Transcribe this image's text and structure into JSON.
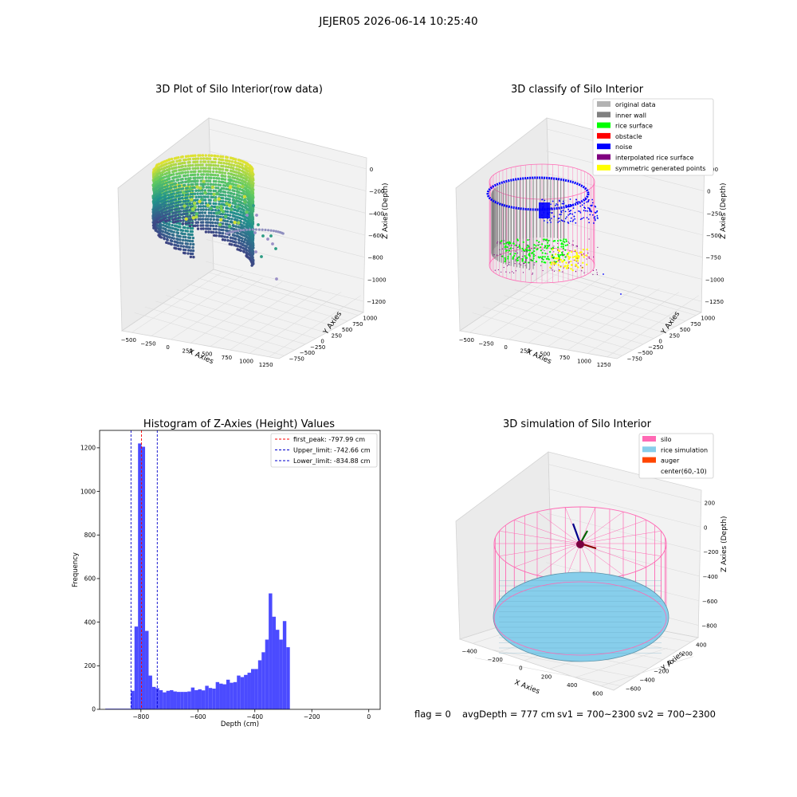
{
  "suptitle": "JEJER05 2026-06-14 10:25:40",
  "footer": {
    "flag": "flag = 0",
    "avg_depth": "avgDepth = 777 cm",
    "sv1": "sv1 = 700~2300",
    "sv2": "sv2 = 700~2300"
  },
  "colors": {
    "bars": "#4b4bff",
    "first_peak_line": "#ff0000",
    "limit_lines": "#0000cc",
    "silo": "#ff69b4",
    "rice_simulation": "#87ceeb",
    "auger": "#ff4500",
    "original_data": "#b3b3b3",
    "inner_wall": "#808080",
    "rice_surface": "#00ff00",
    "obstacle": "#ff0000",
    "noise": "#0000ff",
    "interpolated_rice_surface": "#800080",
    "symmetric_generated_points": "#ffff00"
  },
  "chart_data": [
    {
      "type": "scatter",
      "title": "3D Plot of Silo Interior(row data)",
      "xlabel": "X Axies",
      "ylabel": "Y Axies",
      "zlabel": "Z Axies (Depth)",
      "x_ticks": [
        "−500",
        "−250",
        "0",
        "250",
        "500",
        "750",
        "1000",
        "1250"
      ],
      "y_ticks": [
        "−750",
        "−500",
        "−250",
        "0",
        "250",
        "500",
        "750",
        "1000"
      ],
      "z_ticks": [
        "0",
        "−200",
        "−400",
        "−600",
        "−800",
        "−1000",
        "−1200"
      ],
      "colormap": "viridis"
    },
    {
      "type": "scatter",
      "title": "3D classify of Silo Interior",
      "xlabel": "X Axies",
      "ylabel": "Y Axies",
      "zlabel": "Z Axies (Depth)",
      "x_ticks": [
        "−500",
        "−250",
        "0",
        "250",
        "500",
        "750",
        "1000",
        "1250"
      ],
      "y_ticks": [
        "−750",
        "−500",
        "−250",
        "0",
        "250",
        "500",
        "750",
        "1000"
      ],
      "z_ticks": [
        "100",
        "0",
        "−250",
        "−500",
        "−750",
        "−1000",
        "−1250"
      ],
      "legend": [
        "original data",
        "inner wall",
        "rice surface",
        "obstacle",
        "noise",
        "interpolated rice surface",
        "symmetric generated points"
      ],
      "legend_position": "top-right"
    },
    {
      "type": "bar",
      "title": "Histogram of Z-Axies (Height) Values",
      "xlabel": "Depth (cm)",
      "ylabel": "Frequency",
      "xlim": [
        -945,
        40
      ],
      "ylim": [
        0,
        1280
      ],
      "x_ticks": [
        -800,
        -600,
        -400,
        -200,
        0
      ],
      "x_tick_labels": [
        "−800",
        "−600",
        "−400",
        "−200",
        "0"
      ],
      "y_ticks": [
        0,
        200,
        400,
        600,
        800,
        1000,
        1200
      ],
      "bin_start": -835,
      "bin_width": 12.4,
      "values": [
        85,
        380,
        1220,
        1205,
        360,
        155,
        103,
        97,
        88,
        78,
        85,
        88,
        82,
        80,
        80,
        80,
        82,
        100,
        88,
        92,
        87,
        108,
        98,
        95,
        125,
        118,
        115,
        136,
        122,
        125,
        155,
        148,
        158,
        168,
        185,
        185,
        225,
        262,
        320,
        532,
        425,
        365,
        320,
        405,
        285
      ],
      "low_bins": {
        "from": -925,
        "to": -835,
        "value": 3
      },
      "vlines": [
        {
          "x": -797.99,
          "label": "first_peak: -797.99 cm",
          "style": "red-dashed"
        },
        {
          "x": -742.66,
          "label": "Upper_limit: -742.66 cm",
          "style": "blue-dashed"
        },
        {
          "x": -834.88,
          "label": "Lower_limit: -834.88 cm",
          "style": "blue-dashed"
        }
      ],
      "legend_position": "top-right"
    },
    {
      "type": "scatter",
      "title": "3D simulation of Silo Interior",
      "xlabel": "X Axies",
      "ylabel": "Y Axies",
      "zlabel": "Z Axies (Depth)",
      "x_ticks": [
        "−400",
        "−200",
        "0",
        "200",
        "400",
        "600"
      ],
      "y_ticks": [
        "−600",
        "−400",
        "−200",
        "0",
        "200",
        "400"
      ],
      "z_ticks": [
        "200",
        "0",
        "−200",
        "−400",
        "−600",
        "−800"
      ],
      "legend": [
        "silo",
        "rice simulation",
        "auger",
        "center(60,-10)"
      ],
      "legend_position": "top-right"
    }
  ]
}
